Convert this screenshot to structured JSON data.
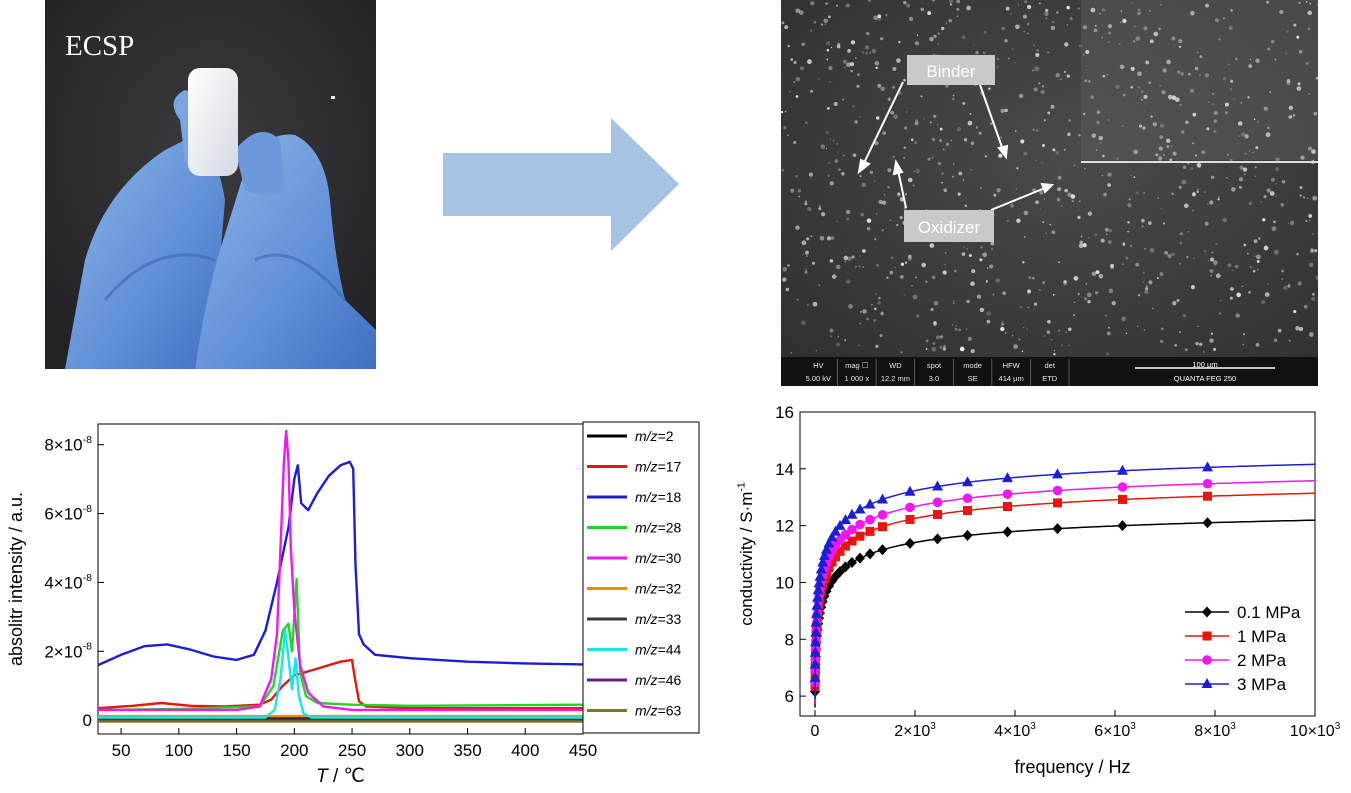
{
  "photo": {
    "label": "ECSP"
  },
  "sem": {
    "labels": [
      "Binder",
      "Oxidizer"
    ],
    "footer": {
      "fields": [
        {
          "k": "HV",
          "v": "5.00 kV"
        },
        {
          "k": "mag ☐",
          "v": "1 000 x"
        },
        {
          "k": "WD",
          "v": "12.2 mm"
        },
        {
          "k": "spot",
          "v": "3.0"
        },
        {
          "k": "mode",
          "v": "SE"
        },
        {
          "k": "HFW",
          "v": "414 µm"
        },
        {
          "k": "det",
          "v": "ETD"
        }
      ],
      "scalebar": "100 µm",
      "instrument": "QUANTA FEG 250"
    }
  },
  "chart_data": [
    {
      "type": "line",
      "xlabel_italic": "T",
      "xlabel_rest": " / ℃",
      "ylabel": "absolitr intensity / a.u.",
      "xlim": [
        30,
        450
      ],
      "ylim": [
        -0.4,
        8.6
      ],
      "xticks": [
        50,
        100,
        150,
        200,
        250,
        300,
        350,
        400,
        450
      ],
      "yticks": [
        {
          "v": 0,
          "base": "0",
          "exp": ""
        },
        {
          "v": 2,
          "base": "2×10",
          "exp": "-8"
        },
        {
          "v": 4,
          "base": "4×10",
          "exp": "-8"
        },
        {
          "v": 6,
          "base": "6×10",
          "exp": "-8"
        },
        {
          "v": 8,
          "base": "8×10",
          "exp": "-8"
        }
      ],
      "legend_placement": "right",
      "series": [
        {
          "name": "m/z=2",
          "name_italic": "m/z",
          "name_rest": "=2",
          "color": "#000000",
          "x": [
            30,
            450
          ],
          "y": [
            0.05,
            0.05
          ]
        },
        {
          "name": "m/z=17",
          "name_italic": "m/z",
          "name_rest": "=17",
          "color": "#e8160c",
          "x": [
            30,
            60,
            85,
            110,
            140,
            170,
            180,
            190,
            200,
            210,
            220,
            230,
            240,
            250,
            252,
            256,
            262,
            300,
            450
          ],
          "y": [
            0.35,
            0.42,
            0.5,
            0.42,
            0.4,
            0.45,
            0.6,
            1.0,
            1.3,
            1.4,
            1.5,
            1.6,
            1.7,
            1.75,
            1.3,
            0.55,
            0.4,
            0.35,
            0.35
          ]
        },
        {
          "name": "m/z=18",
          "name_italic": "m/z",
          "name_rest": "=18",
          "color": "#1c1ed6",
          "x": [
            30,
            50,
            70,
            90,
            110,
            130,
            150,
            165,
            175,
            185,
            195,
            200,
            203,
            206,
            212,
            220,
            230,
            240,
            248,
            251,
            253,
            256,
            260,
            270,
            300,
            350,
            400,
            450
          ],
          "y": [
            1.6,
            1.9,
            2.15,
            2.2,
            2.05,
            1.85,
            1.75,
            1.9,
            2.6,
            4.0,
            5.6,
            7.0,
            7.4,
            6.3,
            6.1,
            6.6,
            7.1,
            7.4,
            7.5,
            7.3,
            4.5,
            2.5,
            2.2,
            1.9,
            1.8,
            1.7,
            1.65,
            1.62
          ]
        },
        {
          "name": "m/z=28",
          "name_italic": "m/z",
          "name_rest": "=28",
          "color": "#22d42a",
          "x": [
            30,
            100,
            170,
            182,
            190,
            195,
            198,
            202,
            205,
            210,
            220,
            250,
            300,
            450
          ],
          "y": [
            0.3,
            0.33,
            0.4,
            1.0,
            2.6,
            2.8,
            2.0,
            4.1,
            1.4,
            0.7,
            0.5,
            0.45,
            0.42,
            0.45
          ]
        },
        {
          "name": "m/z=30",
          "name_italic": "m/z",
          "name_rest": "=30",
          "color": "#f316ee",
          "x": [
            30,
            150,
            170,
            180,
            185,
            188,
            191,
            193,
            195,
            197,
            200,
            205,
            212,
            225,
            250,
            450
          ],
          "y": [
            0.3,
            0.3,
            0.4,
            1.2,
            2.5,
            5.0,
            7.5,
            8.4,
            7.5,
            5.0,
            3.2,
            1.6,
            0.8,
            0.4,
            0.3,
            0.3
          ]
        },
        {
          "name": "m/z=32",
          "name_italic": "m/z",
          "name_rest": "=32",
          "color": "#f08a10",
          "x": [
            30,
            450
          ],
          "y": [
            0.12,
            0.12
          ]
        },
        {
          "name": "m/z=33",
          "name_italic": "m/z",
          "name_rest": "=33",
          "color": "#3a3a3a",
          "x": [
            30,
            450
          ],
          "y": [
            0.02,
            0.02
          ]
        },
        {
          "name": "m/z=44",
          "name_italic": "m/z",
          "name_rest": "=44",
          "color": "#15e6e6",
          "x": [
            30,
            175,
            183,
            188,
            192,
            195,
            198,
            201,
            204,
            208,
            215,
            450
          ],
          "y": [
            0.08,
            0.08,
            0.3,
            1.2,
            2.6,
            1.8,
            0.9,
            1.8,
            0.7,
            0.2,
            0.08,
            0.08
          ]
        },
        {
          "name": "m/z=46",
          "name_italic": "m/z",
          "name_rest": "=46",
          "color": "#6e1a8a",
          "x": [
            30,
            450
          ],
          "y": [
            0.0,
            0.0
          ]
        },
        {
          "name": "m/z=63",
          "name_italic": "m/z",
          "name_rest": "=63",
          "color": "#7d7a16",
          "x": [
            30,
            450
          ],
          "y": [
            -0.04,
            -0.04
          ]
        }
      ]
    },
    {
      "type": "line",
      "xlabel": "frequency / Hz",
      "ylabel_main": "conductivity / S·m",
      "ylabel_exp": "-1",
      "xlim": [
        -300,
        10000
      ],
      "ylim": [
        5.3,
        16
      ],
      "xticks": [
        {
          "v": 0,
          "base": "0",
          "exp": ""
        },
        {
          "v": 2000,
          "base": "2×10",
          "exp": "3"
        },
        {
          "v": 4000,
          "base": "4×10",
          "exp": "3"
        },
        {
          "v": 6000,
          "base": "6×10",
          "exp": "3"
        },
        {
          "v": 8000,
          "base": "8×10",
          "exp": "3"
        },
        {
          "v": 10000,
          "base": "10×10",
          "exp": "3"
        }
      ],
      "yticks": [
        6,
        8,
        10,
        12,
        14,
        16
      ],
      "legend_placement": "bottom-right",
      "series": [
        {
          "name": "0.1 MPa",
          "color": "#000000",
          "marker": "diamond",
          "params": [
            13.0,
            5.6,
            150,
            0.5
          ]
        },
        {
          "name": "1 MPa",
          "color": "#e8160c",
          "marker": "square",
          "params": [
            14.05,
            5.7,
            150,
            0.5
          ]
        },
        {
          "name": "2 MPa",
          "color": "#f316ee",
          "marker": "circle",
          "params": [
            14.5,
            5.8,
            140,
            0.5
          ]
        },
        {
          "name": "3 MPa",
          "color": "#1c1ed6",
          "marker": "triangle",
          "params": [
            15.1,
            5.9,
            130,
            0.5
          ]
        }
      ],
      "marker_x": [
        1,
        3,
        6,
        10,
        15,
        22,
        30,
        40,
        52,
        66,
        82,
        100,
        125,
        155,
        190,
        230,
        280,
        340,
        410,
        500,
        610,
        740,
        900,
        1100,
        1350,
        1900,
        2450,
        3050,
        3850,
        4850,
        6150,
        7850
      ]
    }
  ]
}
